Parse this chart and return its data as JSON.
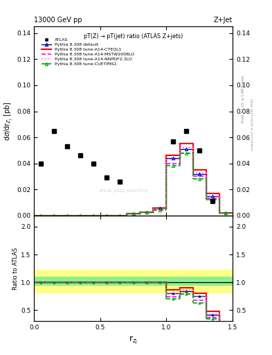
{
  "title_left": "13000 GeV pp",
  "title_right": "Z+Jet",
  "plot_title": "pT(Z) → pT(jet) ratio (ATLAS Z+jets)",
  "ylabel_main": "dσ/dr$_{Z_j}$ [pb]",
  "ylabel_ratio": "Ratio to ATLAS",
  "xlabel": "r$_{z_j}$",
  "right_label_1": "Rivet 3.1.10, ≥ 1.8M events",
  "right_label_2": "mcplots.cern.ch [arXiv:1306.3436]",
  "watermark": "ATLAS_2022_I2077570",
  "atlas_x": [
    0.05,
    0.15,
    0.25,
    0.35,
    0.45,
    0.55,
    0.65,
    0.75,
    0.85,
    0.95,
    1.05,
    1.15,
    1.25,
    1.35,
    1.45
  ],
  "atlas_y": [
    0.04,
    0.065,
    0.053,
    0.046,
    0.04,
    0.029,
    0.026,
    0.0,
    0.0,
    0.0,
    0.057,
    0.065,
    0.05,
    0.011,
    0.0
  ],
  "mc_edges": [
    0.0,
    0.1,
    0.2,
    0.3,
    0.4,
    0.5,
    0.6,
    0.7,
    0.8,
    0.9,
    1.0,
    1.1,
    1.2,
    1.3,
    1.4,
    1.5
  ],
  "default_y": [
    0.0,
    0.0,
    0.0,
    0.0,
    0.0,
    0.0,
    0.0,
    0.0015,
    0.0025,
    0.0055,
    0.044,
    0.051,
    0.032,
    0.015,
    0.002
  ],
  "cteql1_y": [
    0.0,
    0.0,
    0.0,
    0.0,
    0.0,
    0.0,
    0.0,
    0.0015,
    0.0025,
    0.0055,
    0.046,
    0.055,
    0.035,
    0.017,
    0.002
  ],
  "mstw_y": [
    0.0,
    0.0,
    0.0,
    0.0,
    0.0,
    0.0,
    0.0,
    0.0015,
    0.0025,
    0.0045,
    0.04,
    0.048,
    0.03,
    0.013,
    0.002
  ],
  "nnpdf_y": [
    0.0,
    0.0,
    0.0,
    0.0,
    0.0,
    0.0,
    0.0,
    0.0015,
    0.0025,
    0.005,
    0.043,
    0.052,
    0.033,
    0.015,
    0.002
  ],
  "cuetp_y": [
    0.0,
    0.0,
    0.0,
    0.0,
    0.0,
    0.0,
    0.0,
    0.0015,
    0.0025,
    0.004,
    0.038,
    0.048,
    0.028,
    0.012,
    0.002
  ],
  "ratio_default_y": [
    1.0,
    1.0,
    1.0,
    1.0,
    1.0,
    1.0,
    1.0,
    1.0,
    1.0,
    1.0,
    0.8,
    0.84,
    0.75,
    0.42,
    0.2
  ],
  "ratio_cteql1_y": [
    1.0,
    1.0,
    1.0,
    1.0,
    1.0,
    1.0,
    1.0,
    1.0,
    1.0,
    1.0,
    0.86,
    0.9,
    0.8,
    0.48,
    0.22
  ],
  "ratio_mstw_y": [
    1.0,
    1.0,
    1.0,
    1.0,
    1.0,
    1.0,
    1.0,
    1.0,
    1.0,
    1.0,
    0.74,
    0.79,
    0.68,
    0.37,
    0.18
  ],
  "ratio_nnpdf_y": [
    1.0,
    1.0,
    1.0,
    1.0,
    1.0,
    1.0,
    1.0,
    1.0,
    1.0,
    1.0,
    0.8,
    0.86,
    0.74,
    0.43,
    0.2
  ],
  "ratio_cuetp_y": [
    1.0,
    1.0,
    1.0,
    1.0,
    1.0,
    1.0,
    1.0,
    1.0,
    1.0,
    1.0,
    0.7,
    0.79,
    0.63,
    0.34,
    0.16
  ],
  "color_default": "#0000cc",
  "color_cteql1": "#ff0000",
  "color_mstw": "#ff00ff",
  "color_nnpdf": "#ff69b4",
  "color_cuetp": "#00aa00",
  "xlim": [
    0.0,
    1.5
  ],
  "ylim_main": [
    0.0,
    0.145
  ],
  "ylim_ratio": [
    0.3,
    2.2
  ],
  "green_band_lo": 0.95,
  "green_band_hi": 1.1,
  "yellow_band_lo": 0.82,
  "yellow_band_hi": 1.22
}
